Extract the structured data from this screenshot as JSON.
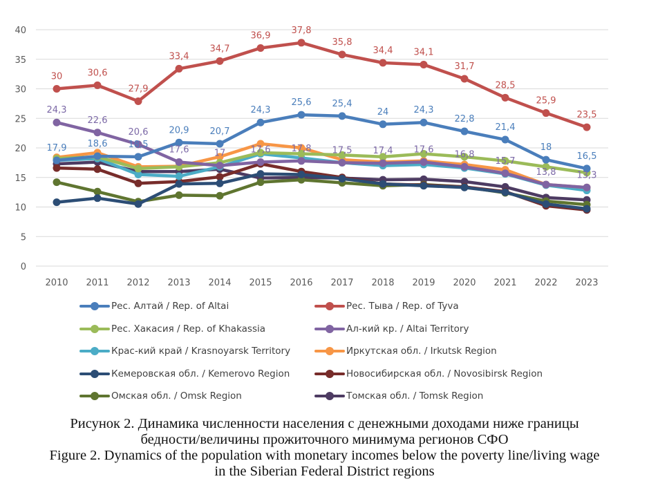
{
  "chart_data": {
    "type": "line",
    "title": "",
    "xlabel": "",
    "ylabel": "",
    "ylim": [
      0,
      40
    ],
    "yticks": [
      0,
      5,
      10,
      15,
      20,
      25,
      30,
      35,
      40
    ],
    "grid": true,
    "legend_position": "bottom",
    "categories": [
      "2010",
      "2011",
      "2012",
      "2013",
      "2014",
      "2015",
      "2016",
      "2017",
      "2018",
      "2019",
      "2020",
      "2021",
      "2022",
      "2023"
    ],
    "series": [
      {
        "name": "Рес. Алтай / Rep. of Altai",
        "color": "#4a7ebb",
        "values": [
          17.9,
          18.6,
          18.5,
          20.9,
          20.7,
          24.3,
          25.6,
          25.4,
          24,
          24.3,
          22.8,
          21.4,
          18,
          16.5
        ],
        "labels": [
          "17,9",
          "18,6",
          "18,5",
          "20,9",
          "20,7",
          "24,3",
          "25,6",
          "25,4",
          "24",
          "24,3",
          "22,8",
          "21,4",
          "18",
          "16,5"
        ]
      },
      {
        "name": "Рес. Тыва / Rep. of Tyva",
        "color": "#c0504d",
        "values": [
          30,
          30.6,
          27.9,
          33.4,
          34.7,
          36.9,
          37.8,
          35.8,
          34.4,
          34.1,
          31.7,
          28.5,
          25.9,
          23.5
        ],
        "labels": [
          "30",
          "30,6",
          "27,9",
          "33,4",
          "34,7",
          "36,9",
          "37,8",
          "35,8",
          "34,4",
          "34,1",
          "31,7",
          "28,5",
          "25,9",
          "23,5"
        ]
      },
      {
        "name": "Рес. Хакасия / Rep. of Khakassia",
        "color": "#9bbb59",
        "values": [
          18.2,
          18.5,
          16.5,
          16.8,
          17.5,
          19.2,
          19.0,
          18.8,
          18.5,
          19.0,
          18.5,
          17.8,
          16.8,
          15.8
        ],
        "labels": []
      },
      {
        "name": "Ал-кий кр. / Altai Territory",
        "color": "#8064a2",
        "values": [
          24.3,
          22.6,
          20.6,
          17.6,
          17,
          17.6,
          17.8,
          17.5,
          17.4,
          17.6,
          16.8,
          15.7,
          13.8,
          13.3
        ],
        "labels": [
          "24,3",
          "22,6",
          "20,6",
          "17,6",
          "17",
          "17,6",
          "17,8",
          "17,5",
          "17,4",
          "17,6",
          "16,8",
          "15,7",
          "13,8",
          "13,3"
        ]
      },
      {
        "name": "Крас-кий край / Krasnoyarsk Territory",
        "color": "#4bacc6",
        "values": [
          17.9,
          18.2,
          15.5,
          15.2,
          16.8,
          19.0,
          18.3,
          17.5,
          17.0,
          17.2,
          16.6,
          15.6,
          13.7,
          12.8
        ],
        "labels": []
      },
      {
        "name": "Иркутская обл. / Irkutsk Region",
        "color": "#f79646",
        "values": [
          18.4,
          19.2,
          16.8,
          16.9,
          18.5,
          20.7,
          20.0,
          18.0,
          17.6,
          17.8,
          17.2,
          16.3,
          13.8,
          13.3
        ],
        "labels": []
      },
      {
        "name": "Кемеровская обл.  / Kemerovo Region",
        "color": "#2c4d75",
        "values": [
          10.8,
          11.5,
          10.5,
          13.9,
          14.0,
          15.6,
          15.5,
          14.8,
          13.9,
          13.6,
          13.3,
          12.5,
          10.5,
          9.7
        ],
        "labels": []
      },
      {
        "name": "Новосибирская обл. / Novosibirsk Region",
        "color": "#772c2a",
        "values": [
          16.6,
          16.4,
          14.0,
          14.3,
          15.1,
          17.3,
          16.0,
          15.0,
          13.9,
          13.7,
          13.4,
          12.6,
          10.2,
          9.5
        ],
        "labels": []
      },
      {
        "name": "Омская обл. / Omsk Region",
        "color": "#5f7530",
        "values": [
          14.2,
          12.6,
          10.9,
          12.0,
          11.9,
          14.2,
          14.6,
          14.1,
          13.6,
          13.8,
          13.4,
          12.4,
          11.0,
          10.4
        ],
        "labels": []
      },
      {
        "name": "Томская обл. / Tomsk Region",
        "color": "#4d3b62",
        "values": [
          17.3,
          17.6,
          16.0,
          16.0,
          16.4,
          14.9,
          15.0,
          14.9,
          14.6,
          14.7,
          14.3,
          13.4,
          11.6,
          11.2
        ],
        "labels": []
      }
    ],
    "draw_order": [
      9,
      8,
      7,
      6,
      4,
      5,
      2,
      3,
      0,
      1
    ],
    "label_colors": {
      "Altai Rep": "#4a7ebb",
      "Tyva": "#c0504d",
      "Altai Territory": "#7b68a6"
    }
  },
  "legend_order": [
    0,
    1,
    2,
    3,
    4,
    5,
    6,
    7,
    8,
    9
  ],
  "caption": {
    "ru_line1": "Рисунок 2. Динамика численности населения с денежными доходами ниже границы",
    "ru_line2": "бедности/величины прожиточного минимума регионов СФО",
    "en_line1": "Figure 2. Dynamics of the population with monetary incomes below the poverty line/living wage",
    "en_line2": "in the Siberian Federal District regions"
  }
}
